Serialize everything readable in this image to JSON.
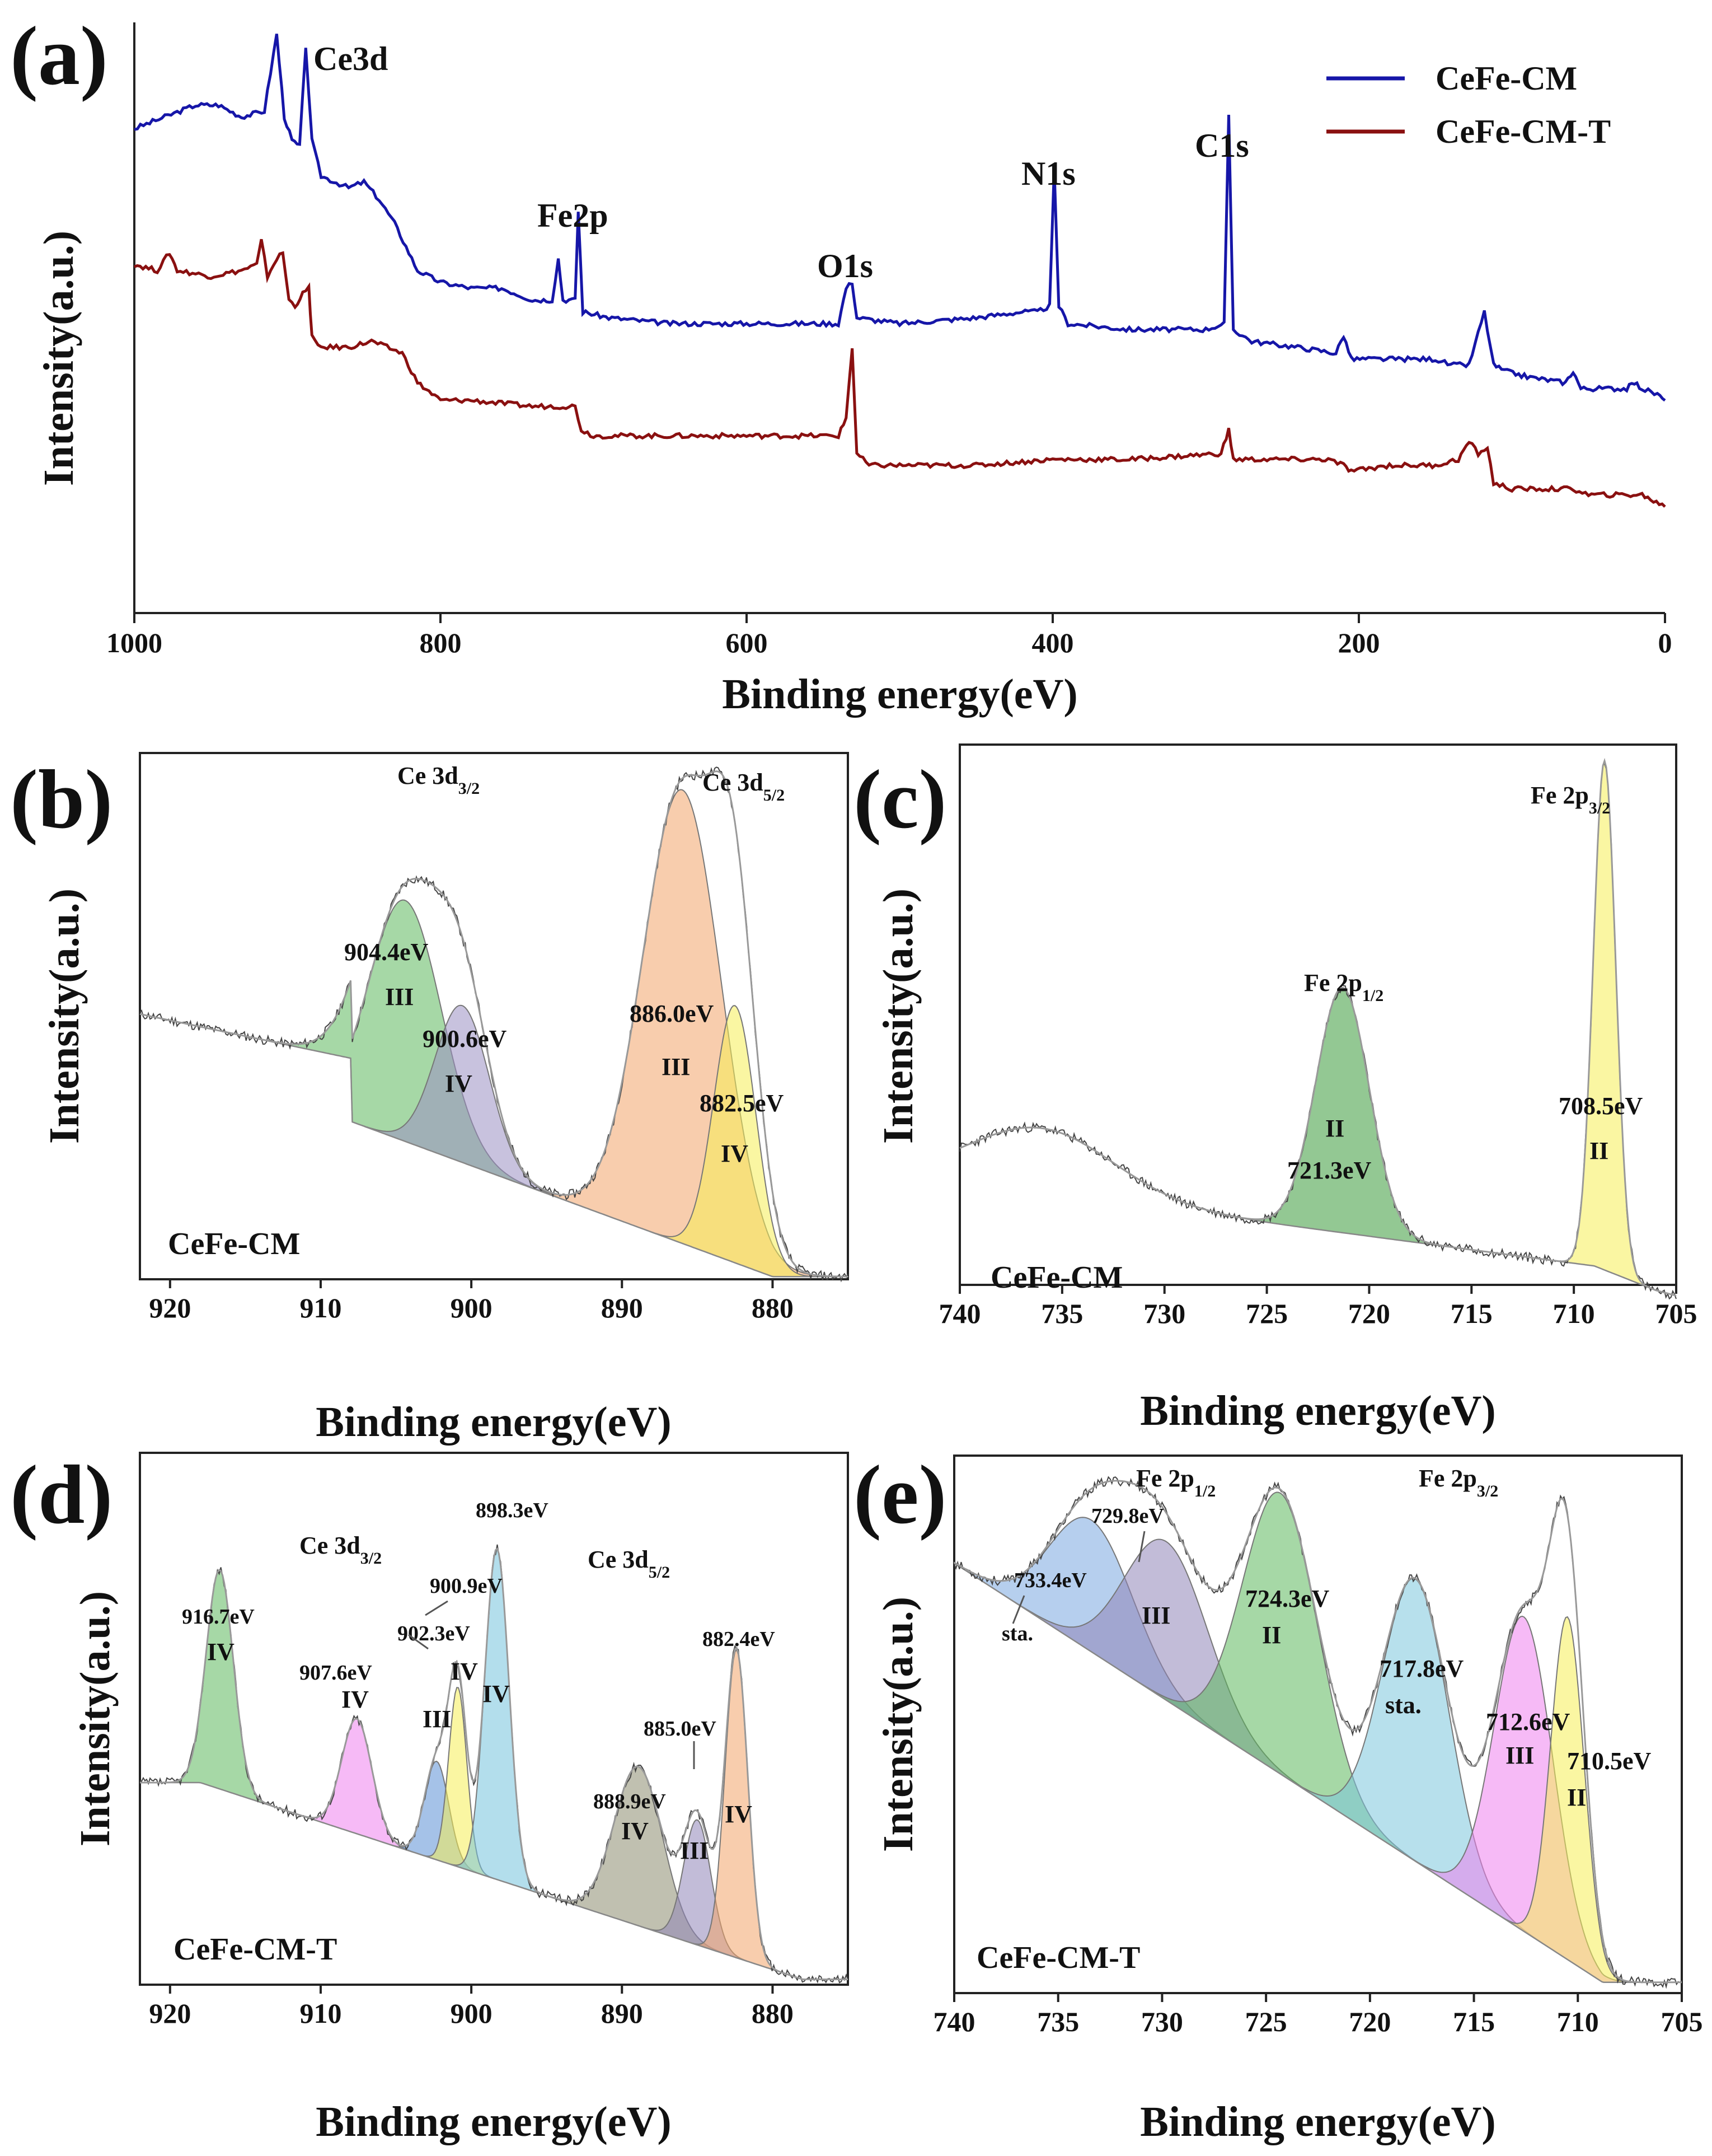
{
  "chart_data": [
    {
      "panel": "(a)",
      "type": "line",
      "xlabel": "Binding energy(eV)",
      "ylabel": "Intensity(a.u.)",
      "xlim": [
        1000,
        0
      ],
      "x_reversed": true,
      "ticks": [
        1000,
        800,
        600,
        400,
        200,
        0
      ],
      "legend_position": "top-right",
      "series": [
        {
          "name": "CeFe-CM",
          "color": "#1616a8",
          "points": [
            [
              1000,
              0.82
            ],
            [
              980,
              0.84
            ],
            [
              960,
              0.86
            ],
            [
              945,
              0.86
            ],
            [
              930,
              0.84
            ],
            [
              915,
              0.85
            ],
            [
              907,
              0.98
            ],
            [
              902,
              0.84
            ],
            [
              897,
              0.8
            ],
            [
              892,
              0.79
            ],
            [
              888,
              0.96
            ],
            [
              884,
              0.8
            ],
            [
              878,
              0.74
            ],
            [
              860,
              0.72
            ],
            [
              850,
              0.73
            ],
            [
              840,
              0.7
            ],
            [
              830,
              0.66
            ],
            [
              815,
              0.58
            ],
            [
              800,
              0.56
            ],
            [
              780,
              0.55
            ],
            [
              760,
              0.55
            ],
            [
              740,
              0.53
            ],
            [
              727,
              0.53
            ],
            [
              723,
              0.6
            ],
            [
              720,
              0.53
            ],
            [
              712,
              0.53
            ],
            [
              710,
              0.68
            ],
            [
              707,
              0.51
            ],
            [
              690,
              0.5
            ],
            [
              650,
              0.49
            ],
            [
              600,
              0.49
            ],
            [
              540,
              0.49
            ],
            [
              535,
              0.55
            ],
            [
              531,
              0.56
            ],
            [
              528,
              0.5
            ],
            [
              500,
              0.49
            ],
            [
              450,
              0.5
            ],
            [
              420,
              0.51
            ],
            [
              410,
              0.51
            ],
            [
              402,
              0.52
            ],
            [
              399,
              0.75
            ],
            [
              396,
              0.52
            ],
            [
              390,
              0.49
            ],
            [
              350,
              0.48
            ],
            [
              300,
              0.48
            ],
            [
              288,
              0.49
            ],
            [
              285,
              0.84
            ],
            [
              282,
              0.48
            ],
            [
              270,
              0.46
            ],
            [
              240,
              0.45
            ],
            [
              215,
              0.44
            ],
            [
              210,
              0.47
            ],
            [
              205,
              0.43
            ],
            [
              190,
              0.43
            ],
            [
              150,
              0.43
            ],
            [
              140,
              0.42
            ],
            [
              128,
              0.42
            ],
            [
              118,
              0.51
            ],
            [
              112,
              0.42
            ],
            [
              105,
              0.41
            ],
            [
              90,
              0.4
            ],
            [
              65,
              0.39
            ],
            [
              60,
              0.41
            ],
            [
              55,
              0.38
            ],
            [
              25,
              0.38
            ],
            [
              20,
              0.39
            ],
            [
              15,
              0.38
            ],
            [
              5,
              0.37
            ],
            [
              0,
              0.36
            ]
          ]
        },
        {
          "name": "CeFe-CM-T",
          "color": "#8a1010",
          "points": [
            [
              1000,
              0.59
            ],
            [
              985,
              0.58
            ],
            [
              977,
              0.61
            ],
            [
              972,
              0.58
            ],
            [
              950,
              0.57
            ],
            [
              930,
              0.58
            ],
            [
              920,
              0.59
            ],
            [
              917,
              0.63
            ],
            [
              913,
              0.57
            ],
            [
              907,
              0.6
            ],
            [
              903,
              0.61
            ],
            [
              899,
              0.53
            ],
            [
              895,
              0.52
            ],
            [
              890,
              0.54
            ],
            [
              886,
              0.55
            ],
            [
              884,
              0.47
            ],
            [
              880,
              0.45
            ],
            [
              860,
              0.45
            ],
            [
              845,
              0.46
            ],
            [
              835,
              0.45
            ],
            [
              825,
              0.44
            ],
            [
              815,
              0.39
            ],
            [
              800,
              0.36
            ],
            [
              780,
              0.36
            ],
            [
              740,
              0.35
            ],
            [
              712,
              0.35
            ],
            [
              708,
              0.31
            ],
            [
              700,
              0.3
            ],
            [
              650,
              0.3
            ],
            [
              600,
              0.3
            ],
            [
              540,
              0.3
            ],
            [
              535,
              0.33
            ],
            [
              531,
              0.45
            ],
            [
              528,
              0.27
            ],
            [
              520,
              0.25
            ],
            [
              480,
              0.25
            ],
            [
              450,
              0.25
            ],
            [
              400,
              0.26
            ],
            [
              350,
              0.26
            ],
            [
              290,
              0.27
            ],
            [
              285,
              0.31
            ],
            [
              282,
              0.26
            ],
            [
              270,
              0.26
            ],
            [
              220,
              0.26
            ],
            [
              210,
              0.25
            ],
            [
              205,
              0.24
            ],
            [
              180,
              0.25
            ],
            [
              150,
              0.25
            ],
            [
              135,
              0.26
            ],
            [
              128,
              0.29
            ],
            [
              122,
              0.27
            ],
            [
              116,
              0.28
            ],
            [
              112,
              0.22
            ],
            [
              100,
              0.21
            ],
            [
              80,
              0.21
            ],
            [
              60,
              0.21
            ],
            [
              50,
              0.2
            ],
            [
              30,
              0.2
            ],
            [
              15,
              0.2
            ],
            [
              0,
              0.18
            ]
          ]
        }
      ],
      "annotations": [
        "Ce3d",
        "Fe2p",
        "O1s",
        "N1s",
        "C1s"
      ]
    },
    {
      "panel": "(b)",
      "type": "area",
      "sample": "CeFe-CM",
      "xlabel": "Binding energy(eV)",
      "ylabel": "Intensity(a.u.)",
      "xlim": [
        922,
        875
      ],
      "x_reversed": true,
      "ticks": [
        920,
        910,
        900,
        890,
        880
      ],
      "region_labels": [
        {
          "base": "Ce 3d",
          "sub": "3/2",
          "at": 902
        },
        {
          "base": "Ce 3d",
          "sub": "5/2",
          "at": 884
        }
      ],
      "peaks": [
        {
          "center": 904.4,
          "label": "904.4eV",
          "state": "III",
          "color": "#5cb85c",
          "height": 0.72,
          "width": 2.4
        },
        {
          "center": 900.6,
          "label": "900.6eV",
          "state": "IV",
          "color": "#9b8fc2",
          "height": 0.52,
          "width": 1.8
        },
        {
          "center": 886.0,
          "label": "886.0eV",
          "state": "III",
          "color": "#f2a46a",
          "height": 0.93,
          "width": 2.6
        },
        {
          "center": 882.5,
          "label": "882.5eV",
          "state": "IV",
          "color": "#f5ee55",
          "height": 0.52,
          "width": 1.4
        }
      ]
    },
    {
      "panel": "(c)",
      "type": "area",
      "sample": "CeFe-CM",
      "xlabel": "Binding energy(eV)",
      "ylabel": "Intensity(a.u.)",
      "xlim": [
        740,
        705
      ],
      "x_reversed": true,
      "ticks": [
        740,
        735,
        730,
        725,
        720,
        715,
        710,
        705
      ],
      "region_labels": [
        {
          "base": "Fe 2p",
          "sub": "1/2",
          "at": 721.3
        },
        {
          "base": "Fe 2p",
          "sub": "3/2",
          "at": 708.5
        }
      ],
      "peaks": [
        {
          "center": 721.3,
          "label": "721.3eV",
          "state": "II",
          "color": "#3a9a3a",
          "height": 0.55,
          "width": 1.3
        },
        {
          "center": 708.5,
          "label": "708.5eV",
          "state": "II",
          "color": "#f5ee55",
          "height": 0.97,
          "width": 0.55
        }
      ]
    },
    {
      "panel": "(d)",
      "type": "area",
      "sample": "CeFe-CM-T",
      "xlabel": "Binding energy(eV)",
      "ylabel": "Intensity(a.u.)",
      "xlim": [
        922,
        875
      ],
      "x_reversed": true,
      "ticks": [
        920,
        910,
        900,
        890,
        880
      ],
      "region_labels": [
        {
          "base": "Ce 3d",
          "sub": "3/2",
          "at": 904
        },
        {
          "base": "Ce 3d",
          "sub": "5/2",
          "at": 889
        }
      ],
      "peaks": [
        {
          "center": 916.7,
          "label": "916.7eV",
          "state": "IV",
          "color": "#5cb85c",
          "height": 0.78,
          "width": 0.9
        },
        {
          "center": 907.6,
          "label": "907.6eV",
          "state": "IV",
          "color": "#ee82ee",
          "height": 0.5,
          "width": 1.0
        },
        {
          "center": 902.3,
          "label": "902.3eV",
          "state": "III",
          "color": "#5b8fd6",
          "height": 0.42,
          "width": 0.8
        },
        {
          "center": 900.9,
          "label": "900.9eV",
          "state": "IV",
          "color": "#f5ee55",
          "height": 0.56,
          "width": 0.6
        },
        {
          "center": 898.3,
          "label": "898.3eV",
          "state": "IV",
          "color": "#74c3dc",
          "height": 0.82,
          "width": 0.8
        },
        {
          "center": 888.9,
          "label": "888.9eV",
          "state": "IV",
          "color": "#8c8c70",
          "height": 0.41,
          "width": 1.6
        },
        {
          "center": 885.0,
          "label": "885.0eV",
          "state": "III",
          "color": "#8f85b8",
          "height": 0.31,
          "width": 0.9
        },
        {
          "center": 882.4,
          "label": "882.4eV",
          "state": "IV",
          "color": "#f2a46a",
          "height": 0.63,
          "width": 0.75
        }
      ]
    },
    {
      "panel": "(e)",
      "type": "area",
      "sample": "CeFe-CM-T",
      "xlabel": "Binding energy(eV)",
      "ylabel": "Intensity(a.u.)",
      "xlim": [
        740,
        705
      ],
      "x_reversed": true,
      "ticks": [
        740,
        735,
        730,
        725,
        720,
        715,
        710,
        705
      ],
      "region_labels": [
        {
          "base": "Fe 2p",
          "sub": "1/2",
          "at": 728
        },
        {
          "base": "Fe 2p",
          "sub": "3/2",
          "at": 711
        }
      ],
      "peaks": [
        {
          "center": 733.4,
          "label": "733.4eV",
          "state": "sta.",
          "color": "#7aa8e0",
          "height": 0.88,
          "width": 2.0
        },
        {
          "center": 729.8,
          "label": "729.8eV",
          "state": "III",
          "color": "#8f85b8",
          "height": 0.84,
          "width": 2.0
        },
        {
          "center": 724.3,
          "label": "724.3eV",
          "state": "II",
          "color": "#5cb85c",
          "height": 0.93,
          "width": 1.8
        },
        {
          "center": 717.8,
          "label": "717.8eV",
          "state": "sta.",
          "color": "#7cc7dc",
          "height": 0.77,
          "width": 1.6
        },
        {
          "center": 712.6,
          "label": "712.6eV",
          "state": "III",
          "color": "#ee82ee",
          "height": 0.7,
          "width": 1.4
        },
        {
          "center": 710.5,
          "label": "710.5eV",
          "state": "II",
          "color": "#f5ee55",
          "height": 0.7,
          "width": 0.8
        }
      ]
    }
  ]
}
